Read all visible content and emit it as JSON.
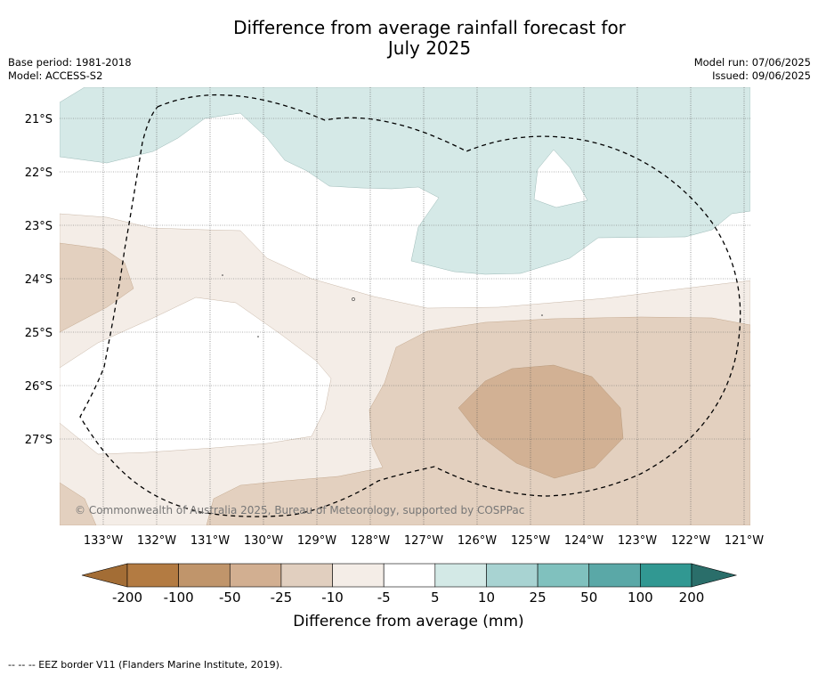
{
  "title_line1": "Difference from average rainfall forecast for",
  "title_line2": "July 2025",
  "meta": {
    "base_period": "Base period: 1981-2018",
    "model": "Model: ACCESS-S2",
    "model_run": "Model run: 07/06/2025",
    "issued": "Issued: 09/06/2025"
  },
  "map": {
    "lon_labels": [
      "133°W",
      "132°W",
      "131°W",
      "130°W",
      "129°W",
      "128°W",
      "127°W",
      "126°W",
      "125°W",
      "124°W",
      "123°W",
      "122°W",
      "121°W"
    ],
    "lat_labels": [
      "21°S",
      "22°S",
      "23°S",
      "24°S",
      "25°S",
      "26°S",
      "27°S"
    ],
    "copyright": "© Commonwealth of Australia 2025, Bureau of Meteorology, supported by COSPPac"
  },
  "colorbar": {
    "labels": [
      "-200",
      "-100",
      "-50",
      "-25",
      "-10",
      "-5",
      "5",
      "10",
      "25",
      "50",
      "100",
      "200"
    ],
    "colors": [
      "#a36d35",
      "#b37b42",
      "#c0956b",
      "#d2af91",
      "#e1cfbf",
      "#f4ede7",
      "#ffffff",
      "#d3e9e6",
      "#a8d3d2",
      "#80c1be",
      "#5aa8a7",
      "#319892",
      "#2a6e6a"
    ],
    "title": "Difference from average (mm)"
  },
  "footer": "--  --  -- EEZ border V11 (Flanders Marine Institute, 2019)."
}
